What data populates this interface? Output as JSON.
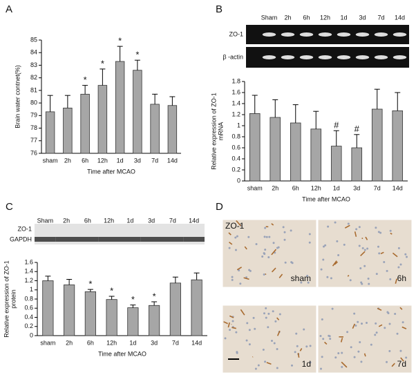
{
  "panel_labels": [
    "A",
    "B",
    "C",
    "D"
  ],
  "chart_data": [
    {
      "type": "bar",
      "categories": [
        "sham",
        "2h",
        "6h",
        "12h",
        "1d",
        "3d",
        "7d",
        "14d"
      ],
      "values": [
        79.3,
        79.6,
        80.7,
        81.4,
        83.3,
        82.6,
        79.9,
        79.8
      ],
      "errors": [
        1.3,
        1.0,
        0.7,
        1.3,
        1.2,
        0.8,
        0.8,
        0.7
      ],
      "markers": [
        null,
        null,
        "*",
        "*",
        "*",
        "*",
        null,
        null
      ],
      "color": "#a6a6a6",
      "ylim": [
        76,
        85
      ],
      "yticks": [
        76,
        77,
        78,
        79,
        80,
        81,
        82,
        83,
        84,
        85
      ],
      "ylabel": [
        "Brain water contnet(%)"
      ],
      "xlabel": "Time after MCAO"
    },
    {
      "type": "bar",
      "categories": [
        "sham",
        "2h",
        "6h",
        "12h",
        "1d",
        "3d",
        "7d",
        "14d"
      ],
      "values": [
        1.22,
        1.15,
        1.05,
        0.94,
        0.63,
        0.6,
        1.3,
        1.27
      ],
      "errors": [
        0.33,
        0.32,
        0.33,
        0.32,
        0.28,
        0.24,
        0.36,
        0.33
      ],
      "markers": [
        null,
        null,
        null,
        null,
        "#",
        "#",
        null,
        null
      ],
      "color": "#a6a6a6",
      "ylim": [
        0,
        1.8
      ],
      "yticks": [
        0,
        0.2,
        0.4,
        0.6,
        0.8,
        1,
        1.2,
        1.4,
        1.6,
        1.8
      ],
      "ylabel": [
        "Relative expression of ZO-1",
        "mRNA"
      ],
      "xlabel": "Time after MCAO"
    },
    {
      "type": "bar",
      "categories": [
        "sham",
        "2h",
        "6h",
        "12h",
        "1d",
        "3d",
        "7d",
        "14d"
      ],
      "values": [
        1.2,
        1.11,
        0.96,
        0.79,
        0.61,
        0.66,
        1.15,
        1.22
      ],
      "errors": [
        0.1,
        0.12,
        0.05,
        0.07,
        0.06,
        0.08,
        0.13,
        0.15
      ],
      "markers": [
        null,
        null,
        "*",
        "*",
        "*",
        "*",
        null,
        null
      ],
      "color": "#a6a6a6",
      "ylim": [
        0,
        1.6
      ],
      "yticks": [
        0,
        0.2,
        0.4,
        0.6,
        0.8,
        1,
        1.2,
        1.4,
        1.6
      ],
      "ylabel": [
        "Relative expression of ZO-1",
        "protein"
      ],
      "xlabel": "Time after MCAO"
    }
  ],
  "gels": {
    "B": {
      "lanes": [
        "Sham",
        "2h",
        "6h",
        "12h",
        "1d",
        "3d",
        "7d",
        "14d"
      ],
      "rows": [
        "ZO-1",
        "β -actin"
      ]
    },
    "C": {
      "lanes": [
        "Sham",
        "2h",
        "6h",
        "12h",
        "1d",
        "3d",
        "7d",
        "14d"
      ],
      "rows": [
        "ZO-1",
        "GAPDH"
      ]
    }
  },
  "micrographs": {
    "stain": "ZO-1",
    "labels": [
      "sham",
      "6h",
      "1d",
      "7d"
    ]
  }
}
